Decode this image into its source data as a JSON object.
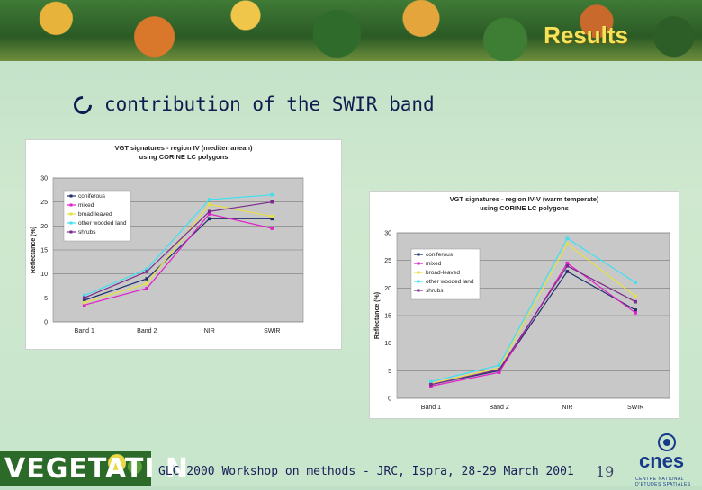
{
  "banner": {
    "title": "Results"
  },
  "bullet": {
    "text": "contribution of the SWIR band"
  },
  "footer": {
    "text": "GLC 2000 Workshop on methods - JRC, Ispra, 28-29 March 2001",
    "page": "19"
  },
  "logos": {
    "left_text": "VEGETATI  N",
    "right_text": "cnes",
    "right_sub": "CENTRE NATIONAL D'ETUDES SPATIALES"
  },
  "chart_data": [
    {
      "type": "line",
      "title": "VGT signatures - region IV (mediterranean)",
      "subtitle": "using CORINE LC polygons",
      "ylabel": "Reflectance (%)",
      "xlabel": "",
      "categories": [
        "Band 1",
        "Band 2",
        "NIR",
        "SWIR"
      ],
      "ylim": [
        0,
        30
      ],
      "yticks": [
        0,
        5,
        10,
        15,
        20,
        25,
        30
      ],
      "legend": "top-left",
      "series": [
        {
          "name": "coniferous",
          "values": [
            4.5,
            9,
            21.5,
            21.5
          ],
          "color": "#1f2d6b"
        },
        {
          "name": "mixed",
          "values": [
            3.5,
            7,
            22.5,
            19.5
          ],
          "color": "#e020c8"
        },
        {
          "name": "broad leaved",
          "values": [
            4,
            8,
            24.5,
            22
          ],
          "color": "#e8e040"
        },
        {
          "name": "other wooded land",
          "values": [
            5.5,
            11,
            25.5,
            26.5
          ],
          "color": "#40e0f0"
        },
        {
          "name": "shrubs",
          "values": [
            5,
            10.5,
            23,
            25
          ],
          "color": "#7a2a8a"
        }
      ]
    },
    {
      "type": "line",
      "title": "VGT signatures - region IV-V (warm temperate)",
      "subtitle": "using CORINE LC polygons",
      "ylabel": "Reflectance (%)",
      "xlabel": "",
      "categories": [
        "Band 1",
        "Band 2",
        "NIR",
        "SWIR"
      ],
      "ylim": [
        0,
        30
      ],
      "yticks": [
        0,
        5,
        10,
        15,
        20,
        25,
        30
      ],
      "legend": "top-left",
      "series": [
        {
          "name": "coniferous",
          "values": [
            2.5,
            5,
            23,
            16
          ],
          "color": "#1f2d6b"
        },
        {
          "name": "mixed",
          "values": [
            2.2,
            4.7,
            24.5,
            15.5
          ],
          "color": "#e020c8"
        },
        {
          "name": "broad-leaved",
          "values": [
            2.7,
            5.5,
            28,
            18.5
          ],
          "color": "#e8e040"
        },
        {
          "name": "other wooded land",
          "values": [
            3,
            6,
            29,
            21
          ],
          "color": "#40e0f0"
        },
        {
          "name": "shrubs",
          "values": [
            2.5,
            5.2,
            24,
            17.5
          ],
          "color": "#7a2a8a"
        }
      ]
    }
  ]
}
